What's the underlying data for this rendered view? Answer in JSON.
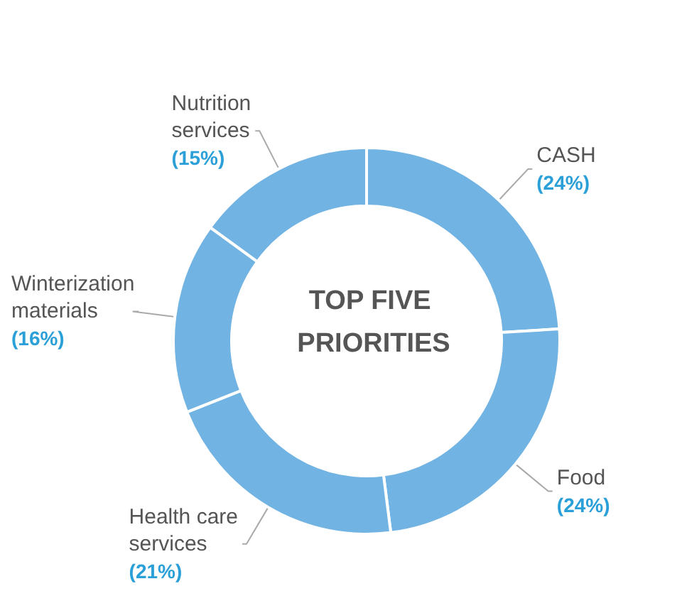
{
  "chart_data": {
    "type": "donut",
    "title": "TOP FIVE PRIORITIES",
    "categories": [
      "CASH",
      "Food",
      "Health care services",
      "Winterization materials",
      "Nutrition services"
    ],
    "values": [
      24,
      24,
      21,
      16,
      15
    ],
    "value_labels": [
      "(24%)",
      "(24%)",
      "(21%)",
      "(16%)",
      "(15%)"
    ],
    "colors": [
      "#71b3e2",
      "#71b3e2",
      "#71b3e2",
      "#71b3e2",
      "#71b3e2"
    ],
    "legend": false
  }
}
